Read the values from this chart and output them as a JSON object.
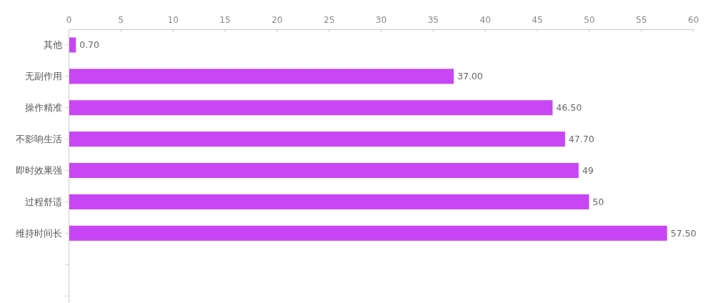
{
  "chart_data": {
    "type": "bar",
    "orientation": "horizontal",
    "categories": [
      "其他",
      "无副作用",
      "操作精准",
      "不影响生活",
      "即时效果强",
      "过程舒适",
      "维持时间长",
      null,
      null
    ],
    "values": [
      0.7,
      37,
      46.5,
      47.7,
      49,
      50,
      57.5,
      null,
      null
    ],
    "value_labels": [
      "0.70",
      "37.00",
      "46.50",
      "47.70",
      "49",
      "50",
      "57.50",
      null,
      null
    ],
    "color": "#c846f4",
    "xlim": [
      0,
      60
    ],
    "xticks": [
      0,
      5,
      10,
      15,
      20,
      25,
      30,
      35,
      40,
      45,
      50,
      55,
      60
    ]
  }
}
